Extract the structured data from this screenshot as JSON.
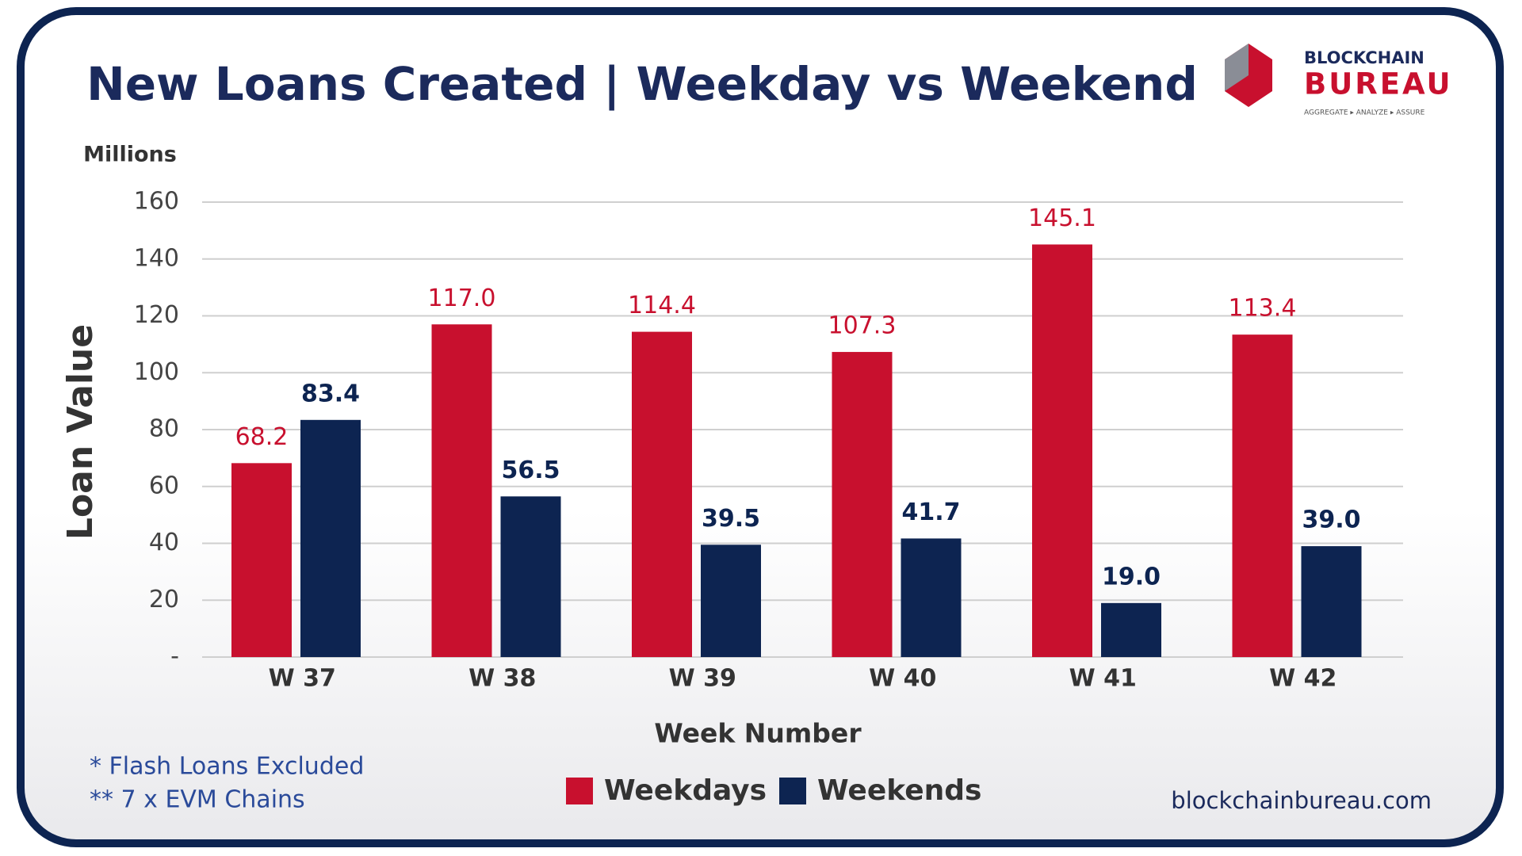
{
  "chart_data": {
    "type": "bar",
    "title": "New Loans Created | Weekday vs Weekend",
    "unit_label": "Millions",
    "y_label": "Loan Value",
    "x_label": "Week Number",
    "categories": [
      "W 37",
      "W 38",
      "W 39",
      "W 40",
      "W 41",
      "W 42"
    ],
    "series": [
      {
        "name": "Weekdays",
        "color": "#c8102e",
        "values": [
          68.2,
          117.0,
          114.4,
          107.3,
          145.1,
          113.4
        ],
        "value_labels": [
          "68.2",
          "117.0",
          "114.4",
          "107.3",
          "145.1",
          "113.4"
        ]
      },
      {
        "name": "Weekends",
        "color": "#0d2451",
        "values": [
          83.4,
          56.5,
          39.5,
          41.7,
          19.0,
          39.0
        ],
        "value_labels": [
          "83.4",
          "56.5",
          "39.5",
          "41.7",
          "19.0",
          "39.0"
        ]
      }
    ],
    "ylim": [
      0,
      160
    ],
    "yticks": [
      {
        "value": 0,
        "label": "-"
      },
      20,
      40,
      60,
      80,
      100,
      120,
      140,
      160
    ],
    "grid": true,
    "notes": [
      "* Flash Loans Excluded",
      "** 7 x EVM Chains"
    ],
    "website": "blockchainbureau.com",
    "logo": {
      "line1": "BLOCKCHAIN",
      "line2": "BUREAU",
      "tagline": "AGGREGATE ▸ ANALYZE ▸ ASSURE"
    }
  }
}
